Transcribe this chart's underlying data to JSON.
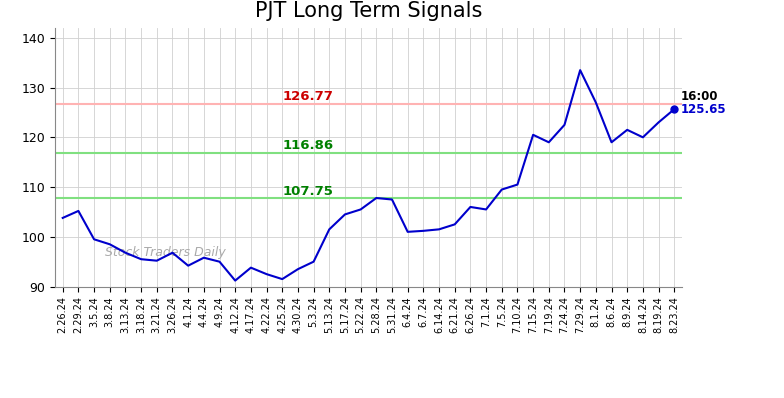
{
  "title": "PJT Long Term Signals",
  "title_fontsize": 15,
  "watermark": "Stock Traders Daily",
  "line_color": "#0000cc",
  "line_width": 1.5,
  "ylim": [
    90,
    142
  ],
  "yticks": [
    90,
    100,
    110,
    120,
    130,
    140
  ],
  "hline_red": 126.77,
  "hline_green1": 116.86,
  "hline_green2": 107.75,
  "hline_red_color": "#ffb3b3",
  "hline_green_color": "#80e080",
  "label_red_color": "#cc0000",
  "label_green_color": "#008000",
  "annotation_16h": "16:00",
  "annotation_price": "125.65",
  "last_price": 125.65,
  "x_labels": [
    "2.26.24",
    "2.29.24",
    "3.5.24",
    "3.8.24",
    "3.13.24",
    "3.18.24",
    "3.21.24",
    "3.26.24",
    "4.1.24",
    "4.4.24",
    "4.9.24",
    "4.12.24",
    "4.17.24",
    "4.22.24",
    "4.25.24",
    "4.30.24",
    "5.3.24",
    "5.13.24",
    "5.17.24",
    "5.22.24",
    "5.28.24",
    "5.31.24",
    "6.4.24",
    "6.7.24",
    "6.14.24",
    "6.21.24",
    "6.26.24",
    "7.1.24",
    "7.5.24",
    "7.10.24",
    "7.15.24",
    "7.19.24",
    "7.24.24",
    "7.29.24",
    "8.1.24",
    "8.6.24",
    "8.9.24",
    "8.14.24",
    "8.19.24",
    "8.23.24"
  ],
  "prices": [
    103.8,
    105.2,
    99.5,
    98.5,
    96.8,
    95.5,
    95.2,
    96.8,
    94.2,
    95.8,
    95.0,
    91.2,
    93.8,
    92.5,
    91.5,
    93.5,
    95.0,
    101.5,
    104.5,
    105.5,
    107.8,
    107.5,
    101.0,
    101.2,
    101.5,
    102.5,
    106.0,
    105.5,
    109.5,
    110.5,
    120.5,
    119.0,
    122.5,
    133.5,
    127.0,
    119.0,
    121.5,
    120.0,
    123.0,
    125.65
  ],
  "background_color": "#ffffff",
  "plot_bg_color": "#ffffff",
  "grid_color": "#d0d0d0",
  "spine_color": "#888888"
}
